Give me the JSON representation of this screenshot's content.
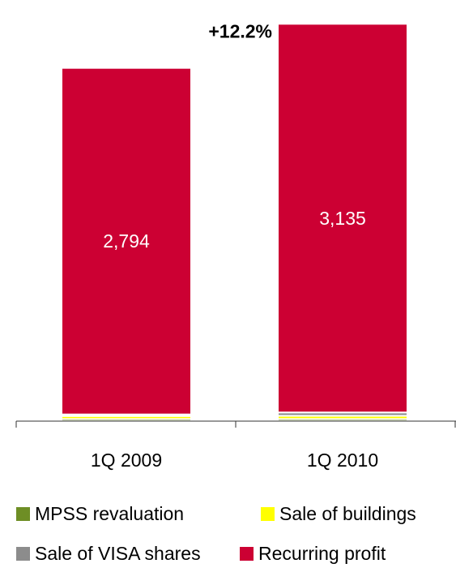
{
  "chart_data": {
    "type": "bar",
    "stacked": true,
    "categories": [
      "1Q 2009",
      "1Q 2010"
    ],
    "series": [
      {
        "name": "MPSS revaluation",
        "color": "#6E8E25",
        "values": [
          4,
          4
        ]
      },
      {
        "name": "Sale of buildings",
        "color": "#FFFF00",
        "values": [
          11,
          13
        ]
      },
      {
        "name": "Sale of VISA shares",
        "color": "#8C8C8C",
        "values": [
          0,
          14
        ]
      },
      {
        "name": "Recurring profit",
        "color": "#CC0033",
        "values": [
          2794,
          3135
        ]
      }
    ],
    "data_labels": [
      "2,794",
      "3,135"
    ],
    "annotation": "+12.2%",
    "ylim": [
      0,
      3300
    ],
    "legend_position": "bottom",
    "grid": false
  }
}
